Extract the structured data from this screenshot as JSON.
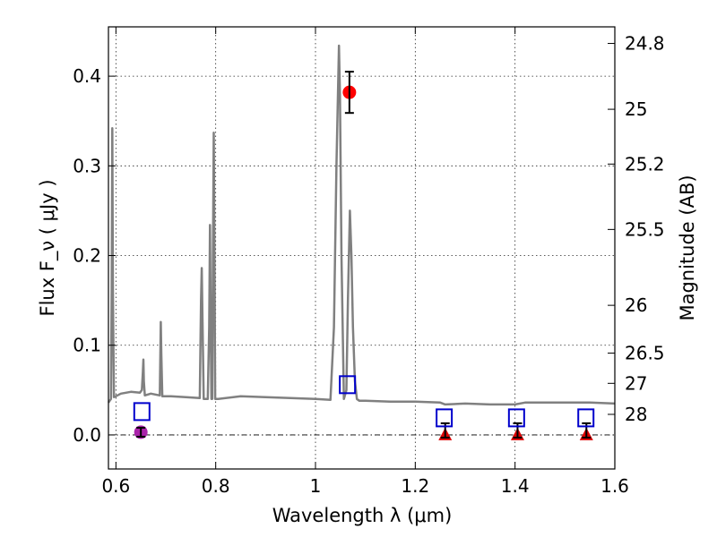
{
  "chart_data": {
    "type": "line",
    "xlabel": "Wavelength  λ (μm)",
    "ylabel": "Flux  F_ν  ( μJy )",
    "y2label": "Magnitude (AB)",
    "xlim": [
      0.585,
      1.6
    ],
    "ylim": [
      -0.038,
      0.455
    ],
    "grid": true,
    "x_ticks": [
      0.6,
      0.8,
      1.0,
      1.2,
      1.4,
      1.6
    ],
    "x_tick_labels": [
      "0.6",
      "0.8",
      "1",
      "1.2",
      "1.4",
      "1.6"
    ],
    "y_ticks": [
      0.0,
      0.1,
      0.2,
      0.3,
      0.4
    ],
    "y_tick_labels": [
      "0.0",
      "0.1",
      "0.2",
      "0.3",
      "0.4"
    ],
    "y2_ticks": [
      {
        "label": "24.8",
        "flux": 0.4365
      },
      {
        "label": "25",
        "flux": 0.3631
      },
      {
        "label": "25.2",
        "flux": 0.302
      },
      {
        "label": "25.5",
        "flux": 0.2291
      },
      {
        "label": "26",
        "flux": 0.1445
      },
      {
        "label": "26.5",
        "flux": 0.0912
      },
      {
        "label": "27",
        "flux": 0.0575
      },
      {
        "label": "28",
        "flux": 0.0229
      }
    ],
    "colors": {
      "model": "#808080",
      "detection": "#ff0000",
      "low_point": "#aa22aa",
      "upper_limit": "#dd0000",
      "model_photometry": "#0000cc",
      "errorbar": "#000000"
    },
    "series": [
      {
        "kind": "model_spectrum",
        "x": [
          0.585,
          0.59,
          0.5915,
          0.5928,
          0.594,
          0.596,
          0.61,
          0.63,
          0.648,
          0.652,
          0.654,
          0.655,
          0.656,
          0.658,
          0.67,
          0.688,
          0.69,
          0.691,
          0.693,
          0.71,
          0.74,
          0.768,
          0.7705,
          0.772,
          0.7735,
          0.776,
          0.784,
          0.787,
          0.7885,
          0.79,
          0.7915,
          0.793,
          0.7945,
          0.796,
          0.7975,
          0.799,
          0.805,
          0.85,
          0.9,
          0.95,
          1.0,
          1.03,
          1.037,
          1.042,
          1.047,
          1.049,
          1.052,
          1.057,
          1.062,
          1.065,
          1.069,
          1.072,
          1.075,
          1.079,
          1.083,
          1.088,
          1.1,
          1.15,
          1.2,
          1.25,
          1.26,
          1.3,
          1.35,
          1.4,
          1.42,
          1.45,
          1.5,
          1.55,
          1.6
        ],
        "y": [
          0.036,
          0.04,
          0.16,
          0.342,
          0.16,
          0.042,
          0.046,
          0.048,
          0.047,
          0.05,
          0.07,
          0.084,
          0.06,
          0.044,
          0.046,
          0.044,
          0.126,
          0.09,
          0.043,
          0.043,
          0.042,
          0.041,
          0.15,
          0.186,
          0.13,
          0.04,
          0.04,
          0.12,
          0.234,
          0.12,
          0.04,
          0.04,
          0.2,
          0.337,
          0.2,
          0.04,
          0.04,
          0.043,
          0.042,
          0.041,
          0.04,
          0.039,
          0.12,
          0.3,
          0.434,
          0.38,
          0.2,
          0.04,
          0.05,
          0.15,
          0.25,
          0.2,
          0.12,
          0.06,
          0.04,
          0.038,
          0.038,
          0.037,
          0.037,
          0.036,
          0.034,
          0.035,
          0.034,
          0.034,
          0.036,
          0.036,
          0.036,
          0.036,
          0.035
        ]
      },
      {
        "kind": "detection",
        "x": [
          1.068
        ],
        "y": [
          0.382
        ],
        "yerr_low": [
          0.359
        ],
        "yerr_high": [
          0.405
        ]
      },
      {
        "kind": "low_point",
        "x": [
          0.65
        ],
        "y": [
          0.003
        ],
        "yerr_low": [
          -0.002
        ],
        "yerr_high": [
          0.008
        ]
      },
      {
        "kind": "upper_limit",
        "x": [
          1.26,
          1.405,
          1.543
        ],
        "y": [
          0.0,
          0.0,
          0.0
        ],
        "yerr_low": [
          -0.003,
          -0.003,
          -0.003
        ],
        "yerr_high": [
          0.013,
          0.013,
          0.013
        ]
      },
      {
        "kind": "model_photometry",
        "x": [
          0.652,
          1.064,
          1.258,
          1.403,
          1.542
        ],
        "y": [
          0.026,
          0.056,
          0.019,
          0.019,
          0.019
        ]
      }
    ]
  }
}
